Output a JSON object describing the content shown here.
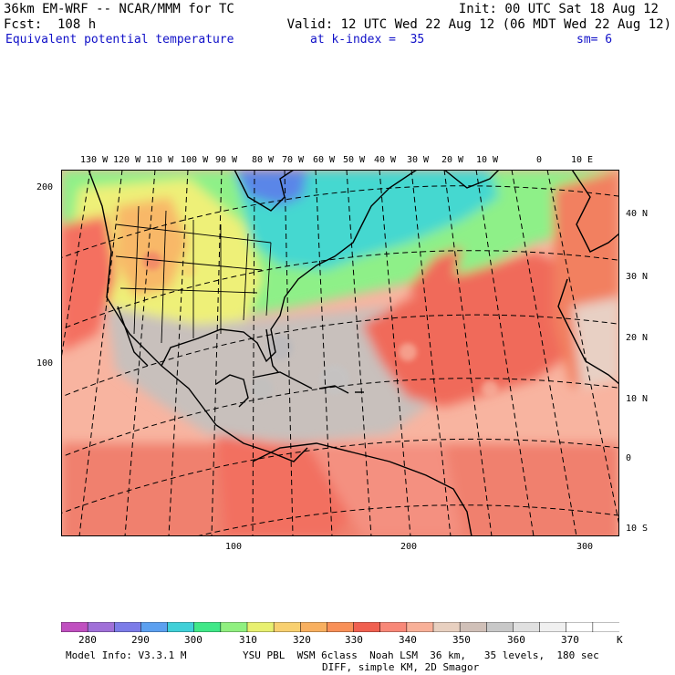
{
  "header": {
    "model_line": "36km EM-WRF -- NCAR/MMM for TC",
    "init": "Init: 00 UTC Sat 18 Aug 12",
    "fcst": "Fcst:  108 h",
    "valid": "Valid: 12 UTC Wed 22 Aug 12 (06 MDT Wed 22 Aug 12)",
    "field": "Equivalent potential temperature",
    "level": "at k-index =  35",
    "smooth": "sm= 6"
  },
  "longitude_labels": [
    "130 W",
    "120 W",
    "110 W",
    "100 W",
    "90 W",
    "80 W",
    "70 W",
    "60 W",
    "50 W",
    "40 W",
    "30 W",
    "20 W",
    "10 W",
    "0",
    "10 E"
  ],
  "latitude_labels": [
    "40 N",
    "30 N",
    "20 N",
    "10 N",
    "0",
    "10 S"
  ],
  "grid_y_labels": [
    "200",
    "100"
  ],
  "grid_x_labels": [
    "100",
    "200",
    "300"
  ],
  "colorbar": {
    "labels": [
      "280",
      "290",
      "300",
      "310",
      "320",
      "330",
      "340",
      "350",
      "360",
      "370"
    ],
    "unit": "K",
    "colors": [
      "#c050c0",
      "#a070d8",
      "#7c7ce8",
      "#5ca0f0",
      "#40d0d8",
      "#40e888",
      "#90f080",
      "#e8f070",
      "#f8d070",
      "#f8b060",
      "#f89058",
      "#f06050",
      "#f88878",
      "#f8b098",
      "#e8d0c0",
      "#d0c0b8",
      "#c8c8c8",
      "#e0e0e0",
      "#f0f0f0",
      "#ffffff",
      "#ffffff"
    ]
  },
  "footer": {
    "model_info": "Model Info: V3.3.1 M",
    "physics": "YSU PBL  WSM 6class  Noah LSM  36 km,   35 levels,  180 sec",
    "diff": "DIFF, simple KM, 2D Smagor"
  }
}
